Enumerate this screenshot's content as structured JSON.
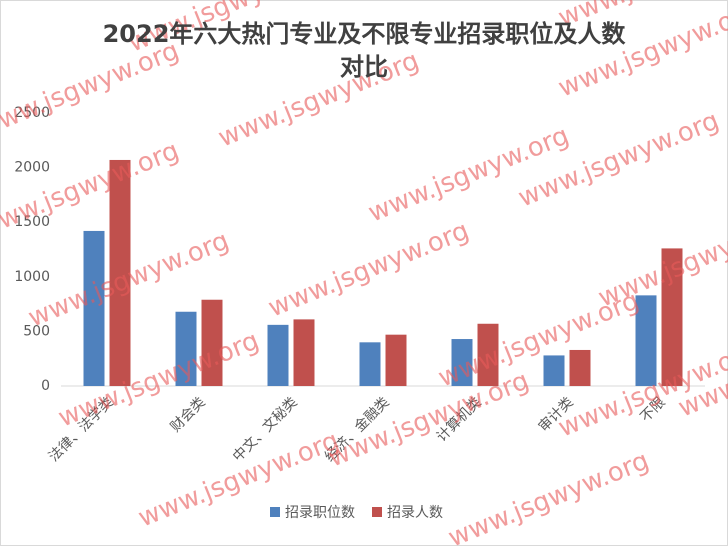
{
  "chart_data": {
    "type": "bar",
    "title": "2022年六大热门专业及不限专业招录职位及人数对比",
    "categories": [
      "法律、法学类",
      "财会类",
      "中文、文秘类",
      "经济、金融类",
      "计算机类",
      "审计类",
      "不限"
    ],
    "series": [
      {
        "name": "招录职位数",
        "color": "#4f81bd",
        "values": [
          1420,
          680,
          560,
          400,
          430,
          280,
          830
        ]
      },
      {
        "name": "招录人数",
        "color": "#c0504d",
        "values": [
          2070,
          790,
          610,
          470,
          570,
          330,
          1260
        ]
      }
    ],
    "ylim": [
      0,
      2500
    ],
    "yticks": [
      0,
      500,
      1000,
      1500,
      2000,
      2500
    ],
    "grid": false,
    "legend": "bottom",
    "watermark": "www.jsgwyw.org"
  }
}
